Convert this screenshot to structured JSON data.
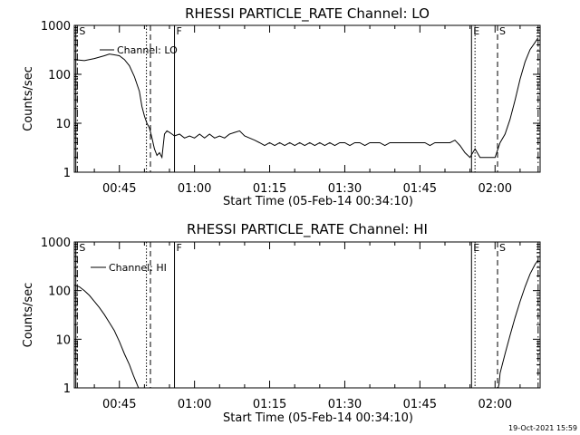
{
  "footer": {
    "date_stamp": "19-Oct-2021 15:59"
  },
  "chart_data": [
    {
      "type": "line",
      "title": "RHESSI PARTICLE_RATE Channel: LO",
      "xlabel": "Start Time (05-Feb-14 00:34:10)",
      "ylabel": "Counts/sec",
      "yscale": "log",
      "xlim": [
        36.0,
        129.0
      ],
      "ylim": [
        1,
        1000
      ],
      "x_ticks": [
        45,
        60,
        75,
        90,
        105,
        120
      ],
      "x_tick_labels": [
        "00:45",
        "01:00",
        "01:15",
        "01:30",
        "01:45",
        "02:00"
      ],
      "y_ticks": [
        1,
        10,
        100,
        1000
      ],
      "y_tick_labels": [
        "1",
        "10",
        "100",
        "1000"
      ],
      "legend_label": "Channel: LO",
      "legend_position": "top-left",
      "series": [
        {
          "name": "LO",
          "segments": [
            [
              [
                36.0,
                200
              ],
              [
                38.0,
                190
              ],
              [
                40.0,
                210
              ],
              [
                42.0,
                240
              ],
              [
                43.0,
                260
              ],
              [
                44.0,
                250
              ],
              [
                45.0,
                240
              ],
              [
                46.0,
                200
              ],
              [
                47.0,
                150
              ],
              [
                48.0,
                90
              ],
              [
                49.0,
                45
              ],
              [
                49.5,
                22
              ],
              [
                50.0,
                14
              ],
              [
                50.5,
                10
              ],
              [
                51.0,
                8
              ],
              [
                51.5,
                5
              ],
              [
                52.0,
                3
              ],
              [
                52.5,
                2.2
              ],
              [
                53.0,
                2.5
              ],
              [
                53.5,
                2
              ],
              [
                54.0,
                6
              ],
              [
                54.5,
                7
              ],
              [
                55.0,
                6.5
              ],
              [
                55.5,
                6
              ],
              [
                56.0,
                5.5
              ],
              [
                57,
                6
              ],
              [
                58,
                5
              ],
              [
                59,
                5.5
              ],
              [
                60,
                5
              ],
              [
                61,
                6
              ],
              [
                62,
                5
              ],
              [
                63,
                6
              ],
              [
                64,
                5
              ],
              [
                65,
                5.5
              ],
              [
                66,
                5
              ],
              [
                67,
                6
              ],
              [
                68,
                6.5
              ],
              [
                69,
                7
              ],
              [
                70,
                5.5
              ],
              [
                71,
                5
              ],
              [
                72,
                4.5
              ],
              [
                73,
                4
              ],
              [
                74,
                3.5
              ],
              [
                75,
                4
              ],
              [
                76,
                3.5
              ],
              [
                77,
                4
              ],
              [
                78,
                3.5
              ],
              [
                79,
                4
              ],
              [
                80,
                3.5
              ],
              [
                81,
                4
              ],
              [
                82,
                3.5
              ],
              [
                83,
                4
              ],
              [
                84,
                3.5
              ],
              [
                85,
                4
              ],
              [
                86,
                3.5
              ],
              [
                87,
                4
              ],
              [
                88,
                3.5
              ],
              [
                89,
                4
              ],
              [
                90,
                4
              ],
              [
                91,
                3.5
              ],
              [
                92,
                4
              ],
              [
                93,
                4
              ],
              [
                94,
                3.5
              ],
              [
                95,
                4
              ],
              [
                96,
                4
              ],
              [
                97,
                4
              ],
              [
                98,
                3.5
              ],
              [
                99,
                4
              ],
              [
                100,
                4
              ],
              [
                101,
                4
              ],
              [
                102,
                4
              ],
              [
                103,
                4
              ],
              [
                104,
                4
              ],
              [
                105,
                4
              ],
              [
                106,
                4
              ],
              [
                107,
                3.5
              ],
              [
                108,
                4
              ],
              [
                109,
                4
              ],
              [
                110,
                4
              ],
              [
                111,
                4
              ],
              [
                112,
                4.5
              ],
              [
                113,
                3.5
              ],
              [
                114,
                2.5
              ],
              [
                115,
                2
              ],
              [
                116,
                3
              ],
              [
                117,
                2
              ],
              [
                118,
                2
              ],
              [
                119,
                2
              ],
              [
                120,
                2
              ],
              [
                121,
                4
              ],
              [
                122,
                6
              ],
              [
                123,
                12
              ],
              [
                124,
                30
              ],
              [
                125,
                80
              ],
              [
                126,
                180
              ],
              [
                127,
                320
              ],
              [
                128,
                450
              ],
              [
                128.6,
                560
              ]
            ]
          ]
        }
      ],
      "markers": [
        {
          "label": "E",
          "x": 36.3,
          "style": "solid",
          "show_label": false
        },
        {
          "label": "S",
          "x": 36.6,
          "style": "dashdot",
          "show_label": true
        },
        {
          "label": "",
          "x": 50.4,
          "style": "dotted",
          "show_label": false
        },
        {
          "label": "",
          "x": 51.2,
          "style": "dashed",
          "show_label": false
        },
        {
          "label": "F",
          "x": 56.0,
          "style": "solid",
          "show_label": true
        },
        {
          "label": "E",
          "x": 115.3,
          "style": "solid",
          "show_label": true
        },
        {
          "label": "",
          "x": 116.0,
          "style": "dotted",
          "show_label": false
        },
        {
          "label": "S",
          "x": 120.5,
          "style": "dashed",
          "show_label": true
        },
        {
          "label": "",
          "x": 128.6,
          "style": "dashdot",
          "show_label": false
        }
      ]
    },
    {
      "type": "line",
      "title": "RHESSI PARTICLE_RATE Channel: HI",
      "xlabel": "Start Time (05-Feb-14 00:34:10)",
      "ylabel": "Counts/sec",
      "yscale": "log",
      "xlim": [
        36.0,
        129.0
      ],
      "ylim": [
        1,
        1000
      ],
      "x_ticks": [
        45,
        60,
        75,
        90,
        105,
        120
      ],
      "x_tick_labels": [
        "00:45",
        "01:00",
        "01:15",
        "01:30",
        "01:45",
        "02:00"
      ],
      "y_ticks": [
        1,
        10,
        100,
        1000
      ],
      "y_tick_labels": [
        "1",
        "10",
        "100",
        "1000"
      ],
      "legend_label": "Channel: HI",
      "legend_position": "top-left",
      "series": [
        {
          "name": "HI",
          "segments": [
            [
              [
                36.0,
                130
              ],
              [
                37.0,
                120
              ],
              [
                38.0,
                100
              ],
              [
                39.0,
                80
              ],
              [
                40.0,
                60
              ],
              [
                41.0,
                45
              ],
              [
                42.0,
                32
              ],
              [
                43.0,
                22
              ],
              [
                44.0,
                15
              ],
              [
                45.0,
                9
              ],
              [
                46.0,
                5
              ],
              [
                47.0,
                3
              ],
              [
                47.8,
                1.8
              ],
              [
                48.5,
                1.2
              ],
              [
                49.0,
                0.9
              ]
            ],
            [
              [
                120.5,
                0.9
              ],
              [
                120.8,
                1.2
              ],
              [
                121.0,
                2
              ],
              [
                122.0,
                5
              ],
              [
                123.0,
                12
              ],
              [
                124.0,
                28
              ],
              [
                125.0,
                60
              ],
              [
                126.0,
                120
              ],
              [
                127.0,
                220
              ],
              [
                128.0,
                350
              ],
              [
                128.6,
                420
              ]
            ]
          ]
        }
      ],
      "markers": [
        {
          "label": "E",
          "x": 36.3,
          "style": "solid",
          "show_label": false
        },
        {
          "label": "S",
          "x": 36.6,
          "style": "dashdot",
          "show_label": true
        },
        {
          "label": "",
          "x": 50.4,
          "style": "dotted",
          "show_label": false
        },
        {
          "label": "",
          "x": 51.2,
          "style": "dashed",
          "show_label": false
        },
        {
          "label": "F",
          "x": 56.0,
          "style": "solid",
          "show_label": true
        },
        {
          "label": "E",
          "x": 115.3,
          "style": "solid",
          "show_label": true
        },
        {
          "label": "",
          "x": 116.0,
          "style": "dotted",
          "show_label": false
        },
        {
          "label": "S",
          "x": 120.5,
          "style": "dashed",
          "show_label": true
        },
        {
          "label": "",
          "x": 128.6,
          "style": "dashdot",
          "show_label": false
        }
      ]
    }
  ]
}
